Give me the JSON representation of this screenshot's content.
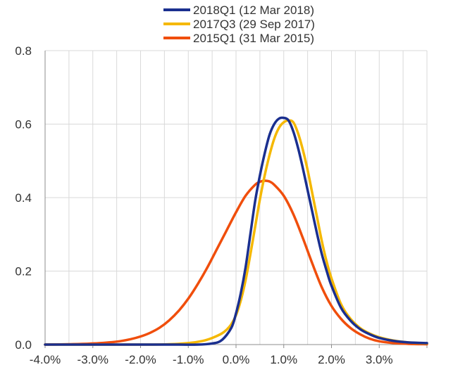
{
  "chart_data": {
    "type": "line",
    "title": "",
    "xlabel": "",
    "ylabel": "",
    "xlim": [
      -4.0,
      4.0
    ],
    "ylim": [
      0,
      0.8
    ],
    "grid": true,
    "legend_position": "top",
    "x_ticks": [
      {
        "value": -4.0,
        "label": "-4.0%"
      },
      {
        "value": -3.0,
        "label": "-3.0%"
      },
      {
        "value": -2.0,
        "label": "-2.0%"
      },
      {
        "value": -1.0,
        "label": "-1.0%"
      },
      {
        "value": 0.0,
        "label": "0.0%"
      },
      {
        "value": 1.0,
        "label": "1.0%"
      },
      {
        "value": 2.0,
        "label": "2.0%"
      },
      {
        "value": 3.0,
        "label": "3.0%"
      }
    ],
    "y_ticks": [
      {
        "value": 0.0,
        "label": "0.0"
      },
      {
        "value": 0.2,
        "label": "0.2"
      },
      {
        "value": 0.4,
        "label": "0.4"
      },
      {
        "value": 0.6,
        "label": "0.6"
      },
      {
        "value": 0.8,
        "label": "0.8"
      }
    ],
    "series": [
      {
        "name": "2018Q1 (12 Mar 2018)",
        "color": "#1a2f8f",
        "points": [
          [
            -4.0,
            0.0
          ],
          [
            -1.5,
            0.0
          ],
          [
            -0.8,
            0.0
          ],
          [
            -0.5,
            0.003
          ],
          [
            -0.3,
            0.012
          ],
          [
            -0.1,
            0.045
          ],
          [
            0.0,
            0.085
          ],
          [
            0.1,
            0.14
          ],
          [
            0.2,
            0.21
          ],
          [
            0.3,
            0.3
          ],
          [
            0.4,
            0.39
          ],
          [
            0.5,
            0.46
          ],
          [
            0.6,
            0.52
          ],
          [
            0.7,
            0.57
          ],
          [
            0.8,
            0.6
          ],
          [
            0.9,
            0.615
          ],
          [
            1.0,
            0.617
          ],
          [
            1.1,
            0.61
          ],
          [
            1.2,
            0.58
          ],
          [
            1.3,
            0.535
          ],
          [
            1.4,
            0.48
          ],
          [
            1.5,
            0.42
          ],
          [
            1.6,
            0.36
          ],
          [
            1.7,
            0.3
          ],
          [
            1.8,
            0.245
          ],
          [
            1.9,
            0.2
          ],
          [
            2.0,
            0.16
          ],
          [
            2.2,
            0.1
          ],
          [
            2.4,
            0.065
          ],
          [
            2.6,
            0.042
          ],
          [
            2.8,
            0.028
          ],
          [
            3.0,
            0.018
          ],
          [
            3.3,
            0.01
          ],
          [
            3.6,
            0.006
          ],
          [
            4.0,
            0.004
          ]
        ]
      },
      {
        "name": "2017Q3 (29 Sep 2017)",
        "color": "#f5b800",
        "points": [
          [
            -4.0,
            0.0
          ],
          [
            -2.0,
            0.0
          ],
          [
            -1.4,
            0.001
          ],
          [
            -1.0,
            0.004
          ],
          [
            -0.7,
            0.01
          ],
          [
            -0.5,
            0.018
          ],
          [
            -0.3,
            0.03
          ],
          [
            -0.2,
            0.04
          ],
          [
            -0.1,
            0.055
          ],
          [
            0.0,
            0.08
          ],
          [
            0.1,
            0.12
          ],
          [
            0.2,
            0.175
          ],
          [
            0.3,
            0.245
          ],
          [
            0.4,
            0.32
          ],
          [
            0.5,
            0.395
          ],
          [
            0.6,
            0.46
          ],
          [
            0.7,
            0.515
          ],
          [
            0.8,
            0.56
          ],
          [
            0.9,
            0.59
          ],
          [
            1.0,
            0.605
          ],
          [
            1.1,
            0.61
          ],
          [
            1.2,
            0.605
          ],
          [
            1.3,
            0.575
          ],
          [
            1.4,
            0.53
          ],
          [
            1.5,
            0.475
          ],
          [
            1.6,
            0.41
          ],
          [
            1.7,
            0.345
          ],
          [
            1.8,
            0.28
          ],
          [
            1.9,
            0.225
          ],
          [
            2.0,
            0.18
          ],
          [
            2.2,
            0.11
          ],
          [
            2.4,
            0.07
          ],
          [
            2.6,
            0.045
          ],
          [
            2.8,
            0.03
          ],
          [
            3.0,
            0.02
          ],
          [
            3.3,
            0.011
          ],
          [
            3.6,
            0.006
          ],
          [
            4.0,
            0.003
          ]
        ]
      },
      {
        "name": "2015Q1 (31 Mar 2015)",
        "color": "#f04e0c",
        "points": [
          [
            -4.0,
            0.0
          ],
          [
            -3.5,
            0.001
          ],
          [
            -3.0,
            0.003
          ],
          [
            -2.5,
            0.008
          ],
          [
            -2.2,
            0.015
          ],
          [
            -2.0,
            0.022
          ],
          [
            -1.8,
            0.032
          ],
          [
            -1.6,
            0.046
          ],
          [
            -1.4,
            0.066
          ],
          [
            -1.2,
            0.092
          ],
          [
            -1.0,
            0.125
          ],
          [
            -0.8,
            0.165
          ],
          [
            -0.6,
            0.21
          ],
          [
            -0.4,
            0.26
          ],
          [
            -0.2,
            0.31
          ],
          [
            0.0,
            0.36
          ],
          [
            0.2,
            0.405
          ],
          [
            0.4,
            0.435
          ],
          [
            0.5,
            0.443
          ],
          [
            0.6,
            0.446
          ],
          [
            0.7,
            0.444
          ],
          [
            0.8,
            0.435
          ],
          [
            1.0,
            0.405
          ],
          [
            1.2,
            0.355
          ],
          [
            1.4,
            0.29
          ],
          [
            1.6,
            0.22
          ],
          [
            1.8,
            0.155
          ],
          [
            2.0,
            0.105
          ],
          [
            2.2,
            0.07
          ],
          [
            2.4,
            0.045
          ],
          [
            2.6,
            0.028
          ],
          [
            2.8,
            0.016
          ],
          [
            3.0,
            0.009
          ],
          [
            3.3,
            0.004
          ],
          [
            3.6,
            0.002
          ],
          [
            4.0,
            0.001
          ]
        ]
      }
    ]
  }
}
